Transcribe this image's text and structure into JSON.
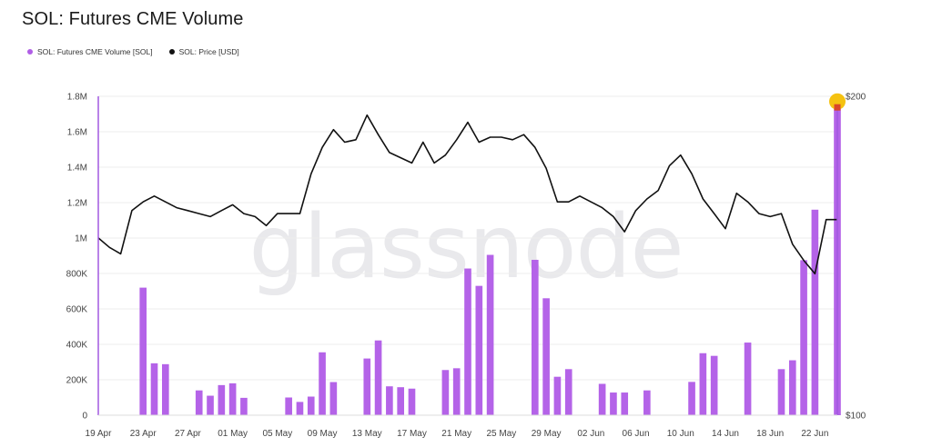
{
  "title": "SOL: Futures CME Volume",
  "legend": [
    {
      "label": "SOL: Futures CME Volume [SOL]",
      "color": "#b05ee6"
    },
    {
      "label": "SOL: Price [USD]",
      "color": "#111111"
    }
  ],
  "watermark": "glassnode",
  "colors": {
    "bar": "#b463e8",
    "price": "#111111",
    "highlight": "#f5c211",
    "axis": "#a259e0",
    "grid": "#ededed"
  },
  "chart_data": {
    "type": "bar",
    "title": "SOL: Futures CME Volume",
    "ylabel": "",
    "y2label": "",
    "ylim": [
      0,
      1800000
    ],
    "y2lim": [
      100,
      200
    ],
    "y2scale": "log",
    "yticks": [
      "0",
      "200K",
      "400K",
      "600K",
      "800K",
      "1M",
      "1.2M",
      "1.4M",
      "1.6M",
      "1.8M"
    ],
    "y2ticks": [
      "$100",
      "$200"
    ],
    "xticks": [
      "19 Apr",
      "23 Apr",
      "27 Apr",
      "01 May",
      "05 May",
      "09 May",
      "13 May",
      "17 May",
      "21 May",
      "25 May",
      "29 May",
      "02 Jun",
      "06 Jun",
      "10 Jun",
      "14 Jun",
      "18 Jun",
      "22 Jun"
    ],
    "x": [
      "2024-04-19",
      "2024-04-20",
      "2024-04-21",
      "2024-04-22",
      "2024-04-23",
      "2024-04-24",
      "2024-04-25",
      "2024-04-26",
      "2024-04-27",
      "2024-04-28",
      "2024-04-29",
      "2024-04-30",
      "2024-05-01",
      "2024-05-02",
      "2024-05-03",
      "2024-05-04",
      "2024-05-05",
      "2024-05-06",
      "2024-05-07",
      "2024-05-08",
      "2024-05-09",
      "2024-05-10",
      "2024-05-11",
      "2024-05-12",
      "2024-05-13",
      "2024-05-14",
      "2024-05-15",
      "2024-05-16",
      "2024-05-17",
      "2024-05-18",
      "2024-05-19",
      "2024-05-20",
      "2024-05-21",
      "2024-05-22",
      "2024-05-23",
      "2024-05-24",
      "2024-05-25",
      "2024-05-26",
      "2024-05-27",
      "2024-05-28",
      "2024-05-29",
      "2024-05-30",
      "2024-05-31",
      "2024-06-01",
      "2024-06-02",
      "2024-06-03",
      "2024-06-04",
      "2024-06-05",
      "2024-06-06",
      "2024-06-07",
      "2024-06-08",
      "2024-06-09",
      "2024-06-10",
      "2024-06-11",
      "2024-06-12",
      "2024-06-13",
      "2024-06-14",
      "2024-06-15",
      "2024-06-16",
      "2024-06-17",
      "2024-06-18",
      "2024-06-19",
      "2024-06-20",
      "2024-06-21",
      "2024-06-22",
      "2024-06-23",
      "2024-06-24"
    ],
    "series": [
      {
        "name": "SOL: Futures CME Volume [SOL]",
        "type": "bar",
        "values": [
          0,
          0,
          0,
          0,
          720000,
          293000,
          288000,
          0,
          0,
          140000,
          110000,
          170000,
          180000,
          98000,
          0,
          0,
          0,
          100000,
          75000,
          105000,
          355000,
          187000,
          0,
          0,
          320000,
          422000,
          163000,
          158000,
          150000,
          0,
          0,
          255000,
          265000,
          828000,
          730000,
          905000,
          0,
          0,
          0,
          877000,
          660000,
          217000,
          260000,
          0,
          0,
          177000,
          128000,
          128000,
          0,
          140000,
          0,
          0,
          0,
          188000,
          350000,
          335000,
          0,
          0,
          410000,
          0,
          0,
          260000,
          310000,
          875000,
          1160000,
          0,
          1740000
        ]
      },
      {
        "name": "SOL: Price [USD]",
        "type": "line",
        "values": [
          147,
          144,
          142,
          156,
          159,
          161,
          159,
          157,
          156,
          155,
          154,
          156,
          158,
          155,
          154,
          151,
          155,
          155,
          155,
          169,
          179,
          186,
          181,
          182,
          192,
          184,
          177,
          175,
          173,
          181,
          173,
          176,
          182,
          189,
          181,
          183,
          183,
          182,
          184,
          179,
          171,
          159,
          159,
          161,
          159,
          157,
          154,
          149,
          156,
          160,
          163,
          172,
          176,
          169,
          160,
          155,
          150,
          162,
          159,
          155,
          154,
          155,
          145,
          140,
          136,
          153,
          153
        ]
      }
    ],
    "highlight": {
      "x": "2024-06-24",
      "series": "SOL: Futures CME Volume [SOL]"
    },
    "grid": true,
    "legend_position": "top-left"
  }
}
